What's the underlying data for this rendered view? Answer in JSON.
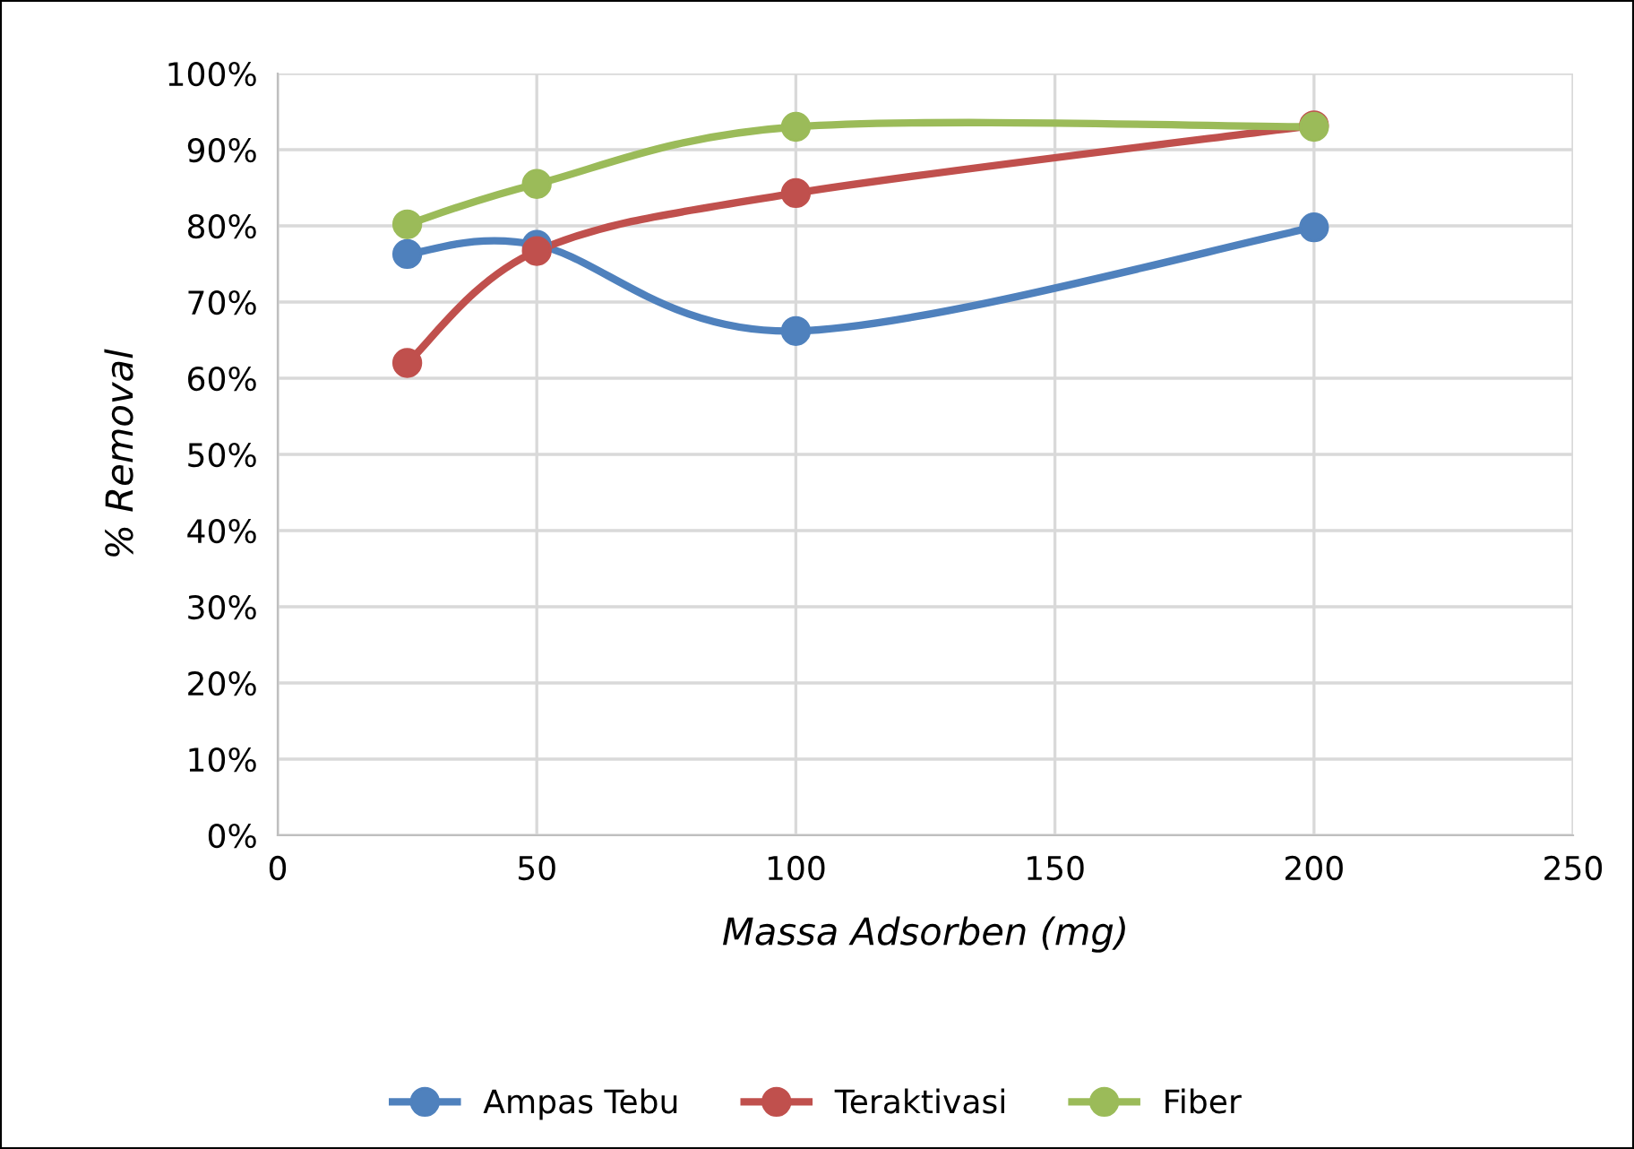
{
  "chart_data": {
    "type": "line",
    "xlabel": "Massa Adsorben (mg)",
    "ylabel": "% Removal",
    "x": [
      25,
      50,
      100,
      200
    ],
    "series": [
      {
        "name": "Ampas Tebu",
        "color": "#4f81bd",
        "values": [
          76.3,
          77.5,
          66.2,
          79.8
        ]
      },
      {
        "name": "Teraktivasi",
        "color": "#c0504d",
        "values": [
          62.0,
          76.7,
          84.3,
          93.2
        ]
      },
      {
        "name": "Fiber",
        "color": "#9bbb59",
        "values": [
          80.2,
          85.5,
          93.0,
          93.0
        ]
      }
    ],
    "xlim": [
      0,
      250
    ],
    "xticks": [
      0,
      50,
      100,
      150,
      200,
      250
    ],
    "ylim": [
      0,
      100
    ],
    "yticks": [
      {
        "value": 0,
        "label": "0%"
      },
      {
        "value": 10,
        "label": "10%"
      },
      {
        "value": 20,
        "label": "20%"
      },
      {
        "value": 30,
        "label": "30%"
      },
      {
        "value": 40,
        "label": "40%"
      },
      {
        "value": 50,
        "label": "50%"
      },
      {
        "value": 60,
        "label": "60%"
      },
      {
        "value": 70,
        "label": "70%"
      },
      {
        "value": 80,
        "label": "80%"
      },
      {
        "value": 90,
        "label": "90%"
      },
      {
        "value": 100,
        "label": "100%"
      }
    ],
    "grid": true,
    "legend": "bottom",
    "marker": "circle",
    "line_style": "solid"
  }
}
